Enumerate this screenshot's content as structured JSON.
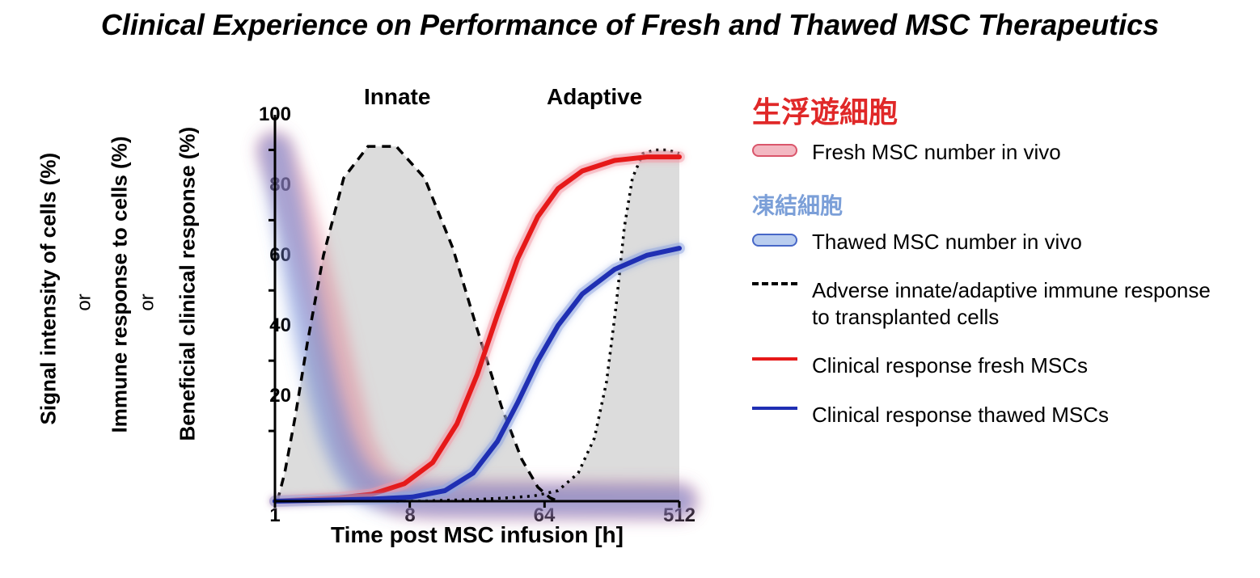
{
  "title": "Clinical Experience on Performance of Fresh and Thawed MSC Therapeutics",
  "ylabels": {
    "y1": "Signal intensity of cells (%)",
    "y2": "Immune response to cells (%)",
    "y3": "Beneficial clinical response (%)",
    "or": "or"
  },
  "annotations": {
    "innate": "Innate",
    "adaptive": "Adaptive"
  },
  "xaxis_label": "Time post MSC infusion [h]",
  "chart": {
    "type": "line",
    "x_scale": "log",
    "x_ticks": [
      1,
      8,
      64,
      512
    ],
    "y_ticks": [
      20,
      40,
      60,
      80,
      100
    ],
    "ylim": [
      0,
      110
    ],
    "axis_color": "#000000",
    "axis_width": 3,
    "tick_fontsize": 24,
    "label_fontsize": 28,
    "background": "#ffffff",
    "series": {
      "fresh_band": {
        "type": "band",
        "color": "#e47a8b",
        "opacity": 0.45,
        "width": 46,
        "blur": 9,
        "points": [
          [
            0,
            100
          ],
          [
            20,
            88
          ],
          [
            40,
            72
          ],
          [
            60,
            54
          ],
          [
            80,
            34
          ],
          [
            100,
            16
          ],
          [
            120,
            7
          ],
          [
            140,
            3
          ],
          [
            160,
            1
          ],
          [
            180,
            0.5
          ],
          [
            200,
            0.3
          ],
          [
            500,
            0
          ]
        ]
      },
      "thawed_band": {
        "type": "band",
        "color": "#5d7fd6",
        "opacity": 0.5,
        "width": 40,
        "blur": 9,
        "points": [
          [
            0,
            100
          ],
          [
            15,
            83
          ],
          [
            30,
            64
          ],
          [
            45,
            46
          ],
          [
            60,
            31
          ],
          [
            75,
            19
          ],
          [
            90,
            11
          ],
          [
            105,
            6
          ],
          [
            120,
            3
          ],
          [
            140,
            1.5
          ],
          [
            160,
            0.8
          ],
          [
            200,
            0.3
          ],
          [
            500,
            0
          ]
        ]
      },
      "innate_dash": {
        "type": "dashed-area",
        "stroke": "#000000",
        "fill": "#c0c0c0",
        "fill_opacity": 0.55,
        "stroke_width": 3.5,
        "dash": "11 8",
        "points": [
          [
            3,
            0
          ],
          [
            12,
            8
          ],
          [
            25,
            24
          ],
          [
            40,
            45
          ],
          [
            60,
            70
          ],
          [
            85,
            92
          ],
          [
            115,
            101
          ],
          [
            150,
            101
          ],
          [
            185,
            92
          ],
          [
            220,
            72
          ],
          [
            250,
            49
          ],
          [
            280,
            27
          ],
          [
            305,
            12
          ],
          [
            325,
            4
          ],
          [
            340,
            1
          ],
          [
            350,
            0
          ]
        ]
      },
      "adaptive_dot": {
        "type": "dotted-area",
        "stroke": "#000000",
        "fill": "#c0c0c0",
        "fill_opacity": 0.55,
        "stroke_width": 3.5,
        "dash": "3 6",
        "points": [
          [
            150,
            0
          ],
          [
            200,
            0.2
          ],
          [
            250,
            0.5
          ],
          [
            290,
            1
          ],
          [
            320,
            1.5
          ],
          [
            350,
            3
          ],
          [
            375,
            8
          ],
          [
            395,
            18
          ],
          [
            410,
            34
          ],
          [
            422,
            56
          ],
          [
            432,
            78
          ],
          [
            442,
            92
          ],
          [
            455,
            99
          ],
          [
            470,
            100
          ],
          [
            485,
            100
          ],
          [
            500,
            99
          ]
        ]
      },
      "clinical_fresh": {
        "type": "line",
        "stroke": "#e61919",
        "stroke_width": 6,
        "glow": "#f19aa6",
        "points": [
          [
            0,
            0
          ],
          [
            40,
            0.5
          ],
          [
            80,
            1
          ],
          [
            120,
            2
          ],
          [
            160,
            5
          ],
          [
            195,
            11
          ],
          [
            225,
            22
          ],
          [
            250,
            36
          ],
          [
            275,
            53
          ],
          [
            300,
            69
          ],
          [
            325,
            81
          ],
          [
            350,
            89
          ],
          [
            380,
            94
          ],
          [
            420,
            97
          ],
          [
            460,
            98
          ],
          [
            500,
            98
          ]
        ]
      },
      "clinical_thawed": {
        "type": "line",
        "stroke": "#1f2fb3",
        "stroke_width": 6,
        "glow": "#8ea4e0",
        "points": [
          [
            0,
            0
          ],
          [
            60,
            0.3
          ],
          [
            120,
            0.6
          ],
          [
            170,
            1.2
          ],
          [
            210,
            3
          ],
          [
            245,
            8
          ],
          [
            275,
            17
          ],
          [
            300,
            28
          ],
          [
            325,
            40
          ],
          [
            350,
            50
          ],
          [
            380,
            59
          ],
          [
            420,
            66
          ],
          [
            460,
            70
          ],
          [
            500,
            72
          ]
        ]
      }
    }
  },
  "legend": {
    "heading_red": "生浮遊細胞",
    "heading_blue": "凍結細胞",
    "items": {
      "fresh_band": "Fresh MSC number in vivo",
      "thawed_band": "Thawed MSC number in vivo",
      "adverse": "Adverse innate/adaptive immune response to transplanted cells",
      "clinical_fresh": "Clinical response fresh MSCs",
      "clinical_thawed": "Clinical response thawed MSCs"
    },
    "swatch_colors": {
      "fresh_fill": "#f3b8c2",
      "fresh_border": "#da566b",
      "thawed_fill": "#b9cdef",
      "thawed_border": "#4767c7",
      "dash": "#000000",
      "line_red": "#e61919",
      "line_blue": "#1f2fb3"
    }
  }
}
